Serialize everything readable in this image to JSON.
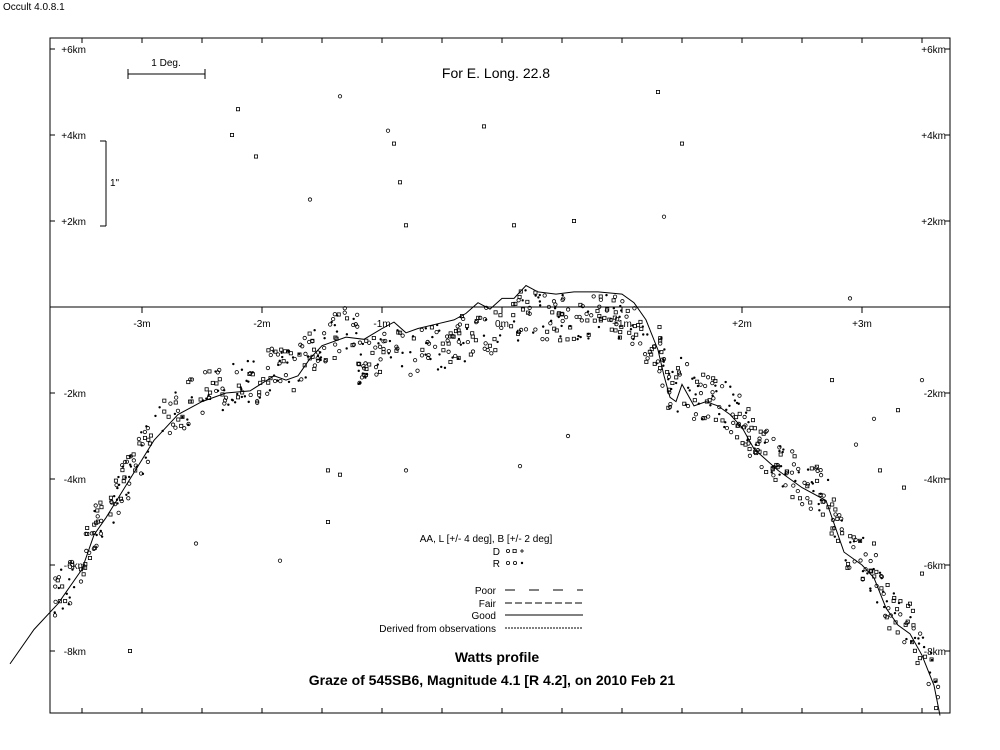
{
  "app": {
    "title": "Occult 4.0.8.1"
  },
  "chart_data": {
    "type": "scatter",
    "title": "For E. Long. 22.8",
    "subtitle": "Watts profile",
    "caption": "Graze of  545SB6,  Magnitude 4.1  [R 4.2],  on 2010 Feb 21",
    "scale_bars": {
      "horizontal": "1 Deg.",
      "vertical": "1\""
    },
    "xlim": [
      -4.1,
      3.7
    ],
    "ylim": [
      -9.5,
      6.2
    ],
    "x_ticks": [
      {
        "v": -3,
        "label": "-3m"
      },
      {
        "v": -2,
        "label": "-2m"
      },
      {
        "v": -1,
        "label": "-1m"
      },
      {
        "v": 0,
        "label": "0m"
      },
      {
        "v": 1,
        "label": "+1m"
      },
      {
        "v": 2,
        "label": "+2m"
      },
      {
        "v": 3,
        "label": "+3m"
      }
    ],
    "y_ticks": [
      {
        "v": 6,
        "label": "+6km"
      },
      {
        "v": 4,
        "label": "+4km"
      },
      {
        "v": 2,
        "label": "+2km"
      },
      {
        "v": -2,
        "label": "-2km"
      },
      {
        "v": -4,
        "label": "-4km"
      },
      {
        "v": -6,
        "label": "-6km"
      },
      {
        "v": -8,
        "label": "-8km"
      }
    ],
    "legend": {
      "header": "AA, L [+/- 4 deg], B [+/- 2 deg]",
      "markers": [
        {
          "label": "D"
        },
        {
          "label": "R"
        }
      ],
      "lines": [
        {
          "label": "Poor",
          "dash": "10,14"
        },
        {
          "label": "Fair",
          "dash": "7,3"
        },
        {
          "label": "Good",
          "dash": "none"
        },
        {
          "label": "Derived from observations",
          "dash": "2,1"
        }
      ]
    },
    "profile_line": {
      "name": "Watts profile",
      "x": [
        -4.1,
        -3.9,
        -3.7,
        -3.5,
        -3.4,
        -3.3,
        -3.1,
        -2.9,
        -2.7,
        -2.5,
        -2.3,
        -2.1,
        -1.9,
        -1.8,
        -1.7,
        -1.6,
        -1.5,
        -1.3,
        -1.15,
        -1.0,
        -0.9,
        -0.8,
        -0.7,
        -0.55,
        -0.4,
        -0.3,
        -0.2,
        -0.1,
        0.0,
        0.1,
        0.2,
        0.3,
        0.45,
        0.6,
        0.8,
        1.0,
        1.1,
        1.2,
        1.3,
        1.35,
        1.4,
        1.45,
        1.5,
        1.6,
        1.7,
        1.8,
        1.9,
        2.0,
        2.1,
        2.3,
        2.5,
        2.7,
        2.85,
        3.0,
        3.1,
        3.2,
        3.3,
        3.4,
        3.5,
        3.6,
        3.65
      ],
      "y": [
        -8.3,
        -7.5,
        -6.9,
        -6.1,
        -5.3,
        -4.9,
        -4.0,
        -3.1,
        -2.5,
        -2.2,
        -2.0,
        -1.95,
        -1.6,
        -1.7,
        -1.6,
        -1.2,
        -0.9,
        -0.7,
        -0.75,
        -0.5,
        -0.35,
        -0.6,
        -0.5,
        -0.4,
        -0.3,
        -0.15,
        0.1,
        -0.05,
        0.2,
        0.2,
        0.5,
        0.35,
        0.3,
        0.35,
        0.35,
        0.3,
        0.1,
        -0.3,
        -1.0,
        -1.6,
        -2.1,
        -2.2,
        -1.8,
        -2.3,
        -2.2,
        -2.3,
        -2.5,
        -2.8,
        -3.3,
        -3.8,
        -4.2,
        -4.5,
        -5.7,
        -6.0,
        -6.3,
        -7.0,
        -7.4,
        -7.6,
        -8.1,
        -8.8,
        -9.5
      ]
    }
  }
}
